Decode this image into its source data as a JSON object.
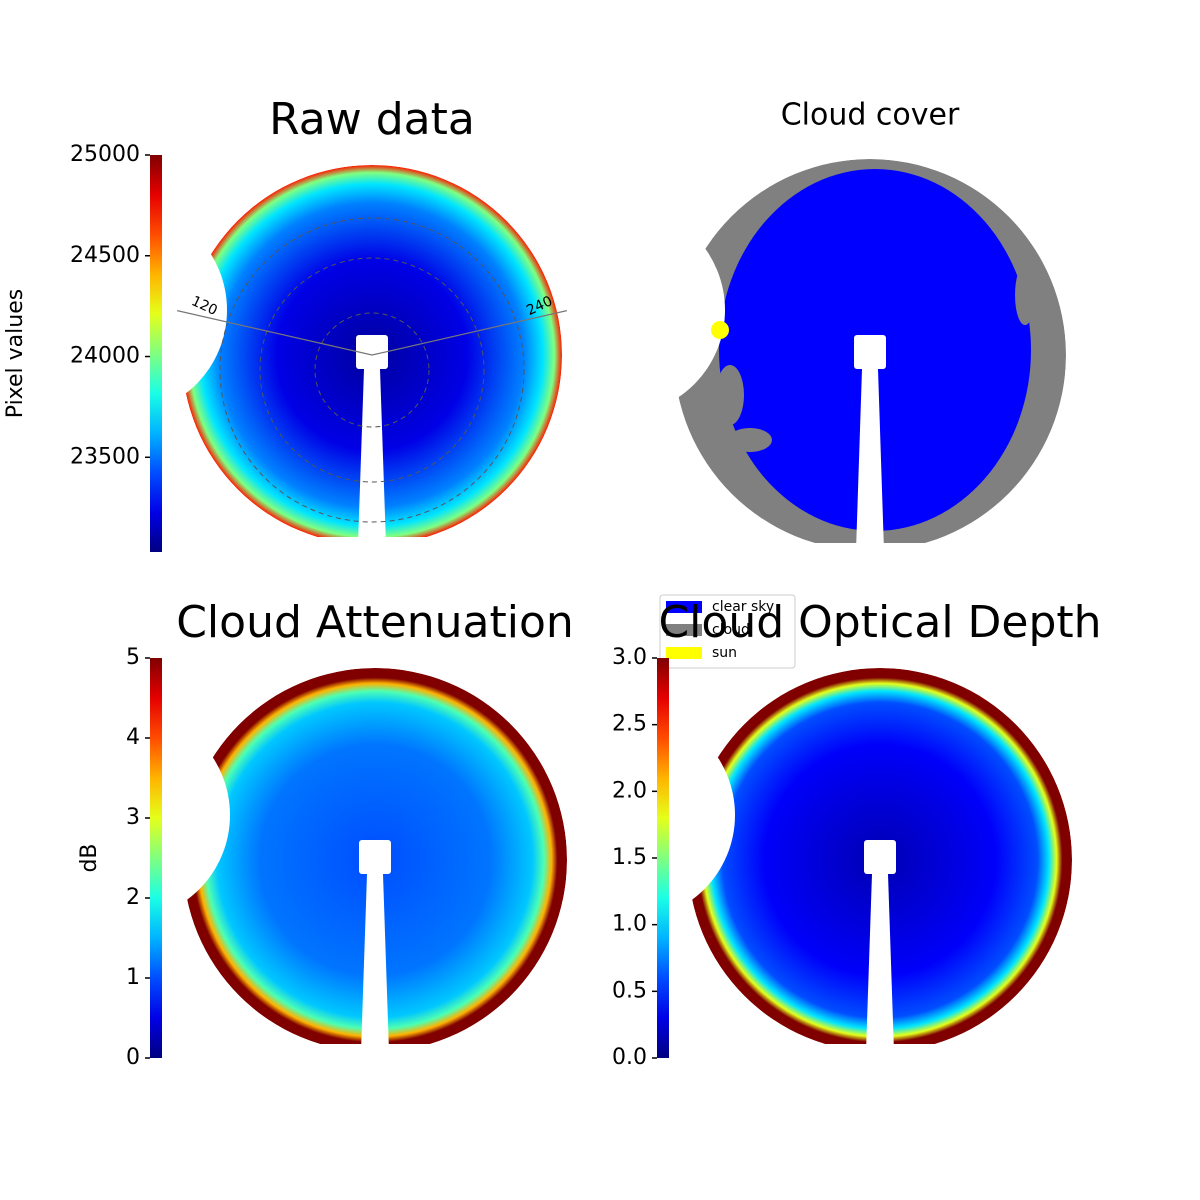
{
  "chart_data": [
    {
      "type": "heatmap",
      "title": "Raw data",
      "colormap": "jet",
      "colorbar": {
        "label": "Pixel values",
        "lim": [
          23030,
          25000
        ],
        "ticks": [
          23500,
          24000,
          24500,
          25000
        ]
      },
      "polar_labels": [
        "120",
        "240"
      ]
    },
    {
      "type": "categorical",
      "title": "Cloud cover",
      "legend": [
        {
          "name": "clear sky",
          "color": "#0000ff"
        },
        {
          "name": "cloud",
          "color": "#808080"
        },
        {
          "name": "sun",
          "color": "#ffff00"
        }
      ]
    },
    {
      "type": "heatmap",
      "title": "Cloud Attenuation",
      "colormap": "jet",
      "colorbar": {
        "label": "dB",
        "lim": [
          0,
          5
        ],
        "ticks": [
          0,
          1,
          2,
          3,
          4,
          5
        ]
      }
    },
    {
      "type": "heatmap",
      "title": "Cloud Optical Depth",
      "colormap": "jet",
      "colorbar": {
        "lim": [
          0,
          3
        ],
        "ticks": [
          {
            "value": 0,
            "label": "0.0"
          },
          0.5,
          {
            "value": 1,
            "label": "1.0"
          },
          1.5,
          {
            "value": 2,
            "label": "2.0"
          },
          2.5,
          {
            "value": 3,
            "label": "3.0"
          }
        ]
      }
    }
  ]
}
